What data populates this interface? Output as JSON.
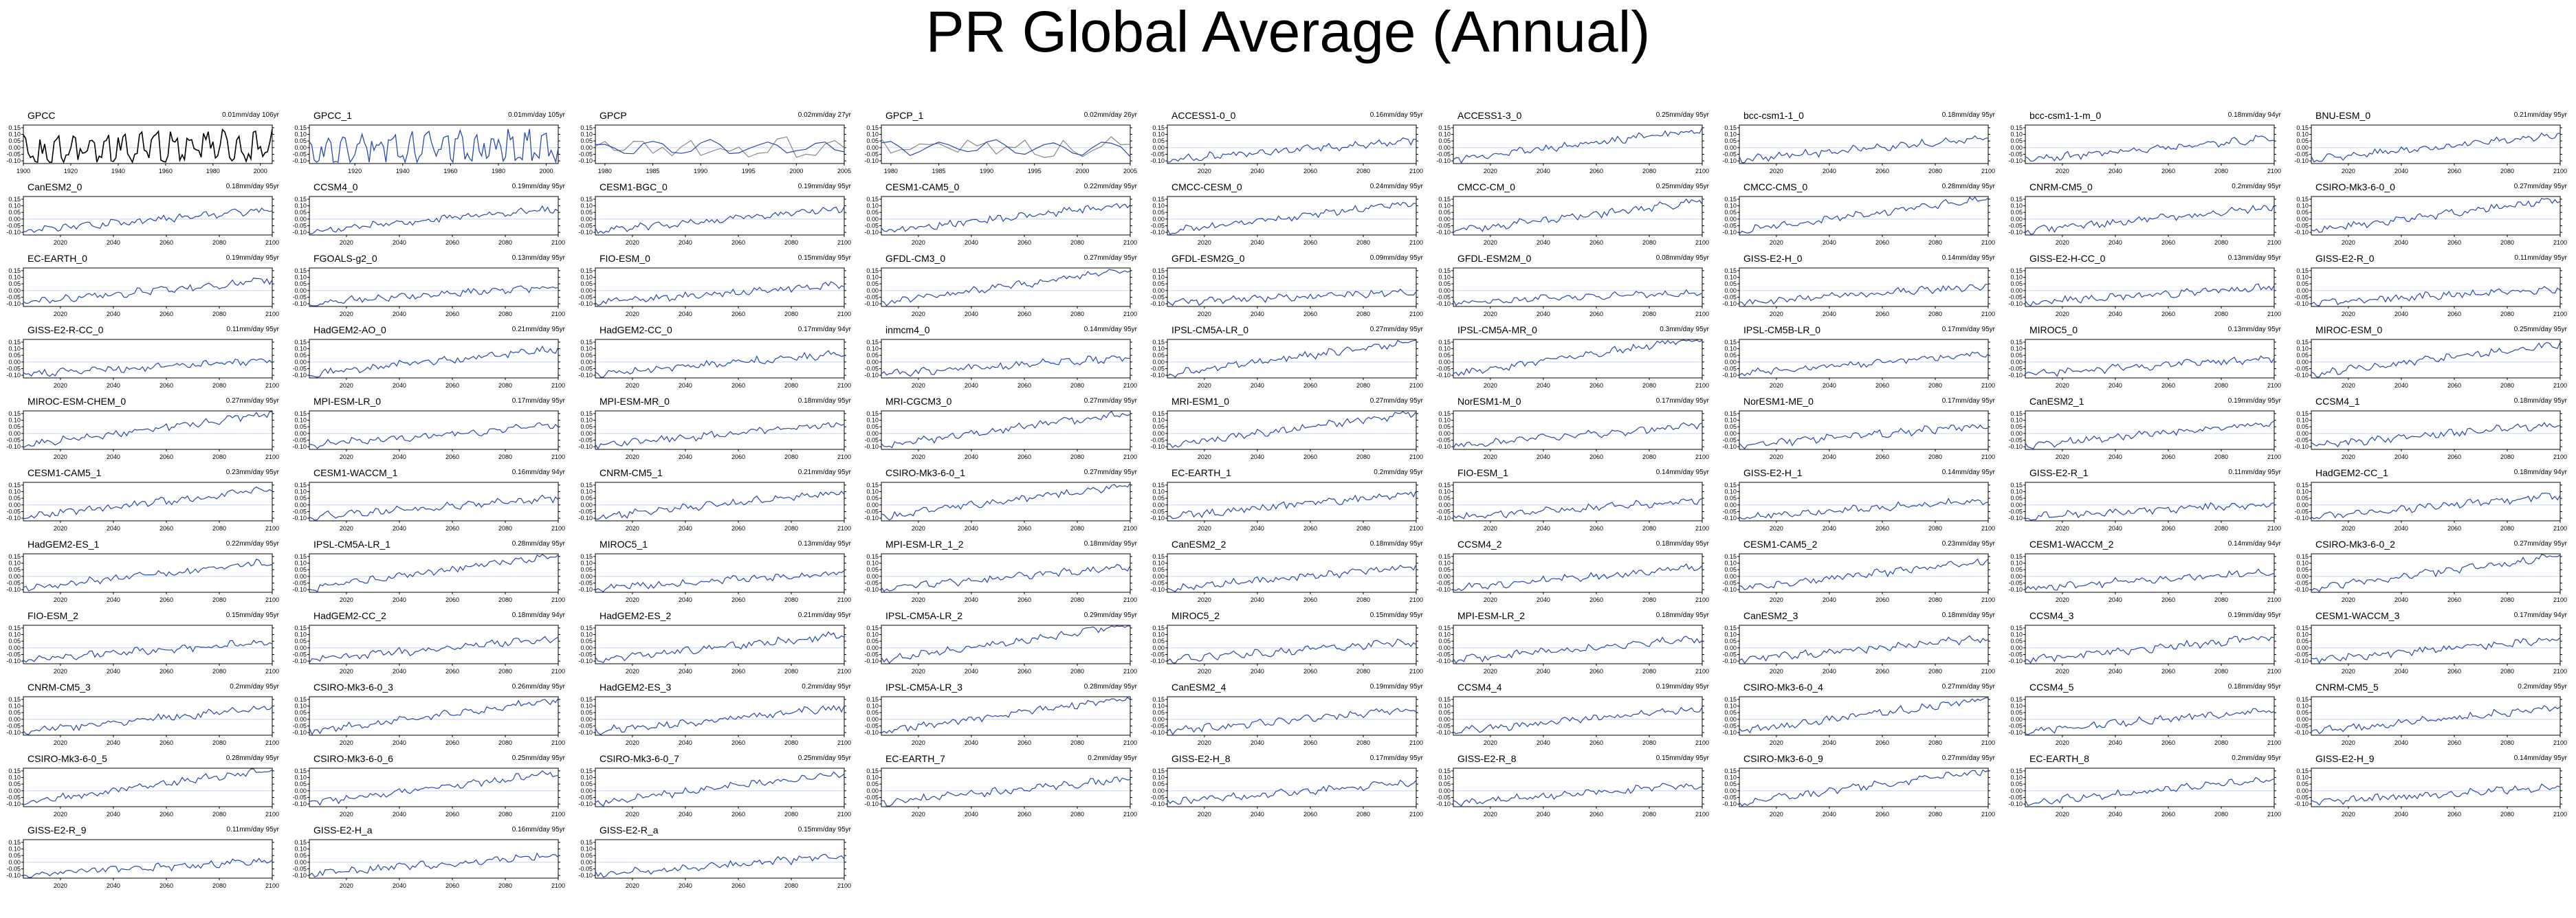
{
  "title": "PR Global Average (Annual)",
  "colors": {
    "observed_line": "#000000",
    "model_line": "#2949b0",
    "reference_line": "#888888",
    "axis": "#000000",
    "zero_line": "#c8d2ea"
  },
  "chart_data": {
    "type": "line",
    "title": "PR Global Average (Annual)",
    "yticks": [
      "0.15",
      "0.10",
      "0.05",
      "0.00",
      "-0.05",
      "-0.10"
    ],
    "ylim": [
      -0.12,
      0.17
    ],
    "grid": false,
    "panels": [
      {
        "name": "GPCC",
        "trend": "0.01mm/day 106yr",
        "xticks": [
          "1900",
          "1920",
          "1940",
          "1960",
          "1980",
          "2000"
        ],
        "xlim": [
          1900,
          2005
        ],
        "kind": "obs"
      },
      {
        "name": "GPCC_1",
        "trend": "0.01mm/day 105yr",
        "xticks": [
          "1920",
          "1940",
          "1960",
          "1980",
          "2000"
        ],
        "xlim": [
          1901,
          2005
        ],
        "kind": "obs1"
      },
      {
        "name": "GPCP",
        "trend": "0.02mm/day 27yr",
        "xticks": [
          "1980",
          "1985",
          "1990",
          "1995",
          "2000",
          "2005"
        ],
        "xlim": [
          1979,
          2005
        ],
        "kind": "gpcp"
      },
      {
        "name": "GPCP_1",
        "trend": "0.02mm/day 26yr",
        "xticks": [
          "1980",
          "1985",
          "1990",
          "1995",
          "2000",
          "2005"
        ],
        "xlim": [
          1979,
          2005
        ],
        "kind": "gpcp"
      },
      {
        "name": "ACCESS1-0_0",
        "trend": "0.16mm/day 95yr",
        "slope": 0.16
      },
      {
        "name": "ACCESS1-3_0",
        "trend": "0.25mm/day 95yr",
        "slope": 0.25
      },
      {
        "name": "bcc-csm1-1_0",
        "trend": "0.18mm/day 95yr",
        "slope": 0.18
      },
      {
        "name": "bcc-csm1-1-m_0",
        "trend": "0.18mm/day 94yr",
        "slope": 0.18
      },
      {
        "name": "BNU-ESM_0",
        "trend": "0.21mm/day 95yr",
        "slope": 0.21
      },
      {
        "name": "CanESM2_0",
        "trend": "0.18mm/day 95yr",
        "slope": 0.18
      },
      {
        "name": "CCSM4_0",
        "trend": "0.19mm/day 95yr",
        "slope": 0.19
      },
      {
        "name": "CESM1-BGC_0",
        "trend": "0.19mm/day 95yr",
        "slope": 0.19
      },
      {
        "name": "CESM1-CAM5_0",
        "trend": "0.22mm/day 95yr",
        "slope": 0.22
      },
      {
        "name": "CMCC-CESM_0",
        "trend": "0.24mm/day 95yr",
        "slope": 0.24
      },
      {
        "name": "CMCC-CM_0",
        "trend": "0.25mm/day 95yr",
        "slope": 0.25
      },
      {
        "name": "CMCC-CMS_0",
        "trend": "0.28mm/day 95yr",
        "slope": 0.28
      },
      {
        "name": "CNRM-CM5_0",
        "trend": "0.2mm/day 95yr",
        "slope": 0.2
      },
      {
        "name": "CSIRO-Mk3-6-0_0",
        "trend": "0.27mm/day 95yr",
        "slope": 0.27
      },
      {
        "name": "EC-EARTH_0",
        "trend": "0.19mm/day 95yr",
        "slope": 0.19
      },
      {
        "name": "FGOALS-g2_0",
        "trend": "0.13mm/day 95yr",
        "slope": 0.13
      },
      {
        "name": "FIO-ESM_0",
        "trend": "0.15mm/day 95yr",
        "slope": 0.15
      },
      {
        "name": "GFDL-CM3_0",
        "trend": "0.27mm/day 95yr",
        "slope": 0.27
      },
      {
        "name": "GFDL-ESM2G_0",
        "trend": "0.09mm/day 95yr",
        "slope": 0.09
      },
      {
        "name": "GFDL-ESM2M_0",
        "trend": "0.08mm/day 95yr",
        "slope": 0.08
      },
      {
        "name": "GISS-E2-H_0",
        "trend": "0.14mm/day 95yr",
        "slope": 0.14
      },
      {
        "name": "GISS-E2-H-CC_0",
        "trend": "0.13mm/day 95yr",
        "slope": 0.13
      },
      {
        "name": "GISS-E2-R_0",
        "trend": "0.11mm/day 95yr",
        "slope": 0.11
      },
      {
        "name": "GISS-E2-R-CC_0",
        "trend": "0.11mm/day 95yr",
        "slope": 0.11
      },
      {
        "name": "HadGEM2-AO_0",
        "trend": "0.21mm/day 95yr",
        "slope": 0.21
      },
      {
        "name": "HadGEM2-CC_0",
        "trend": "0.17mm/day 94yr",
        "slope": 0.17
      },
      {
        "name": "inmcm4_0",
        "trend": "0.14mm/day 95yr",
        "slope": 0.14
      },
      {
        "name": "IPSL-CM5A-LR_0",
        "trend": "0.27mm/day 95yr",
        "slope": 0.27
      },
      {
        "name": "IPSL-CM5A-MR_0",
        "trend": "0.3mm/day 95yr",
        "slope": 0.3
      },
      {
        "name": "IPSL-CM5B-LR_0",
        "trend": "0.17mm/day 95yr",
        "slope": 0.17
      },
      {
        "name": "MIROC5_0",
        "trend": "0.13mm/day 95yr",
        "slope": 0.13
      },
      {
        "name": "MIROC-ESM_0",
        "trend": "0.25mm/day 95yr",
        "slope": 0.25
      },
      {
        "name": "MIROC-ESM-CHEM_0",
        "trend": "0.27mm/day 95yr",
        "slope": 0.27
      },
      {
        "name": "MPI-ESM-LR_0",
        "trend": "0.17mm/day 95yr",
        "slope": 0.17
      },
      {
        "name": "MPI-ESM-MR_0",
        "trend": "0.18mm/day 95yr",
        "slope": 0.18
      },
      {
        "name": "MRI-CGCM3_0",
        "trend": "0.27mm/day 95yr",
        "slope": 0.27
      },
      {
        "name": "MRI-ESM1_0",
        "trend": "0.27mm/day 95yr",
        "slope": 0.27
      },
      {
        "name": "NorESM1-M_0",
        "trend": "0.17mm/day 95yr",
        "slope": 0.17
      },
      {
        "name": "NorESM1-ME_0",
        "trend": "0.17mm/day 95yr",
        "slope": 0.17
      },
      {
        "name": "CanESM2_1",
        "trend": "0.19mm/day 95yr",
        "slope": 0.19
      },
      {
        "name": "CCSM4_1",
        "trend": "0.18mm/day 95yr",
        "slope": 0.18
      },
      {
        "name": "CESM1-CAM5_1",
        "trend": "0.23mm/day 95yr",
        "slope": 0.23
      },
      {
        "name": "CESM1-WACCM_1",
        "trend": "0.16mm/day 94yr",
        "slope": 0.16
      },
      {
        "name": "CNRM-CM5_1",
        "trend": "0.21mm/day 95yr",
        "slope": 0.21
      },
      {
        "name": "CSIRO-Mk3-6-0_1",
        "trend": "0.27mm/day 95yr",
        "slope": 0.27
      },
      {
        "name": "EC-EARTH_1",
        "trend": "0.2mm/day 95yr",
        "slope": 0.2
      },
      {
        "name": "FIO-ESM_1",
        "trend": "0.14mm/day 95yr",
        "slope": 0.14
      },
      {
        "name": "GISS-E2-H_1",
        "trend": "0.14mm/day 95yr",
        "slope": 0.14
      },
      {
        "name": "GISS-E2-R_1",
        "trend": "0.11mm/day 95yr",
        "slope": 0.11
      },
      {
        "name": "HadGEM2-CC_1",
        "trend": "0.18mm/day 94yr",
        "slope": 0.18
      },
      {
        "name": "HadGEM2-ES_1",
        "trend": "0.22mm/day 95yr",
        "slope": 0.22
      },
      {
        "name": "IPSL-CM5A-LR_1",
        "trend": "0.28mm/day 95yr",
        "slope": 0.28
      },
      {
        "name": "MIROC5_1",
        "trend": "0.13mm/day 95yr",
        "slope": 0.13
      },
      {
        "name": "MPI-ESM-LR_1_2",
        "trend": "0.18mm/day 95yr",
        "slope": 0.18
      },
      {
        "name": "CanESM2_2",
        "trend": "0.18mm/day 95yr",
        "slope": 0.18
      },
      {
        "name": "CCSM4_2",
        "trend": "0.18mm/day 95yr",
        "slope": 0.18
      },
      {
        "name": "CESM1-CAM5_2",
        "trend": "0.23mm/day 95yr",
        "slope": 0.23
      },
      {
        "name": "CESM1-WACCM_2",
        "trend": "0.14mm/day 94yr",
        "slope": 0.14
      },
      {
        "name": "CSIRO-Mk3-6-0_2",
        "trend": "0.27mm/day 95yr",
        "slope": 0.27
      },
      {
        "name": "FIO-ESM_2",
        "trend": "0.15mm/day 95yr",
        "slope": 0.15
      },
      {
        "name": "HadGEM2-CC_2",
        "trend": "0.18mm/day 94yr",
        "slope": 0.18
      },
      {
        "name": "HadGEM2-ES_2",
        "trend": "0.21mm/day 95yr",
        "slope": 0.21
      },
      {
        "name": "IPSL-CM5A-LR_2",
        "trend": "0.29mm/day 95yr",
        "slope": 0.29
      },
      {
        "name": "MIROC5_2",
        "trend": "0.15mm/day 95yr",
        "slope": 0.15
      },
      {
        "name": "MPI-ESM-LR_2",
        "trend": "0.18mm/day 95yr",
        "slope": 0.18
      },
      {
        "name": "CanESM2_3",
        "trend": "0.18mm/day 95yr",
        "slope": 0.18
      },
      {
        "name": "CCSM4_3",
        "trend": "0.19mm/day 95yr",
        "slope": 0.19
      },
      {
        "name": "CESM1-WACCM_3",
        "trend": "0.17mm/day 94yr",
        "slope": 0.17
      },
      {
        "name": "CNRM-CM5_3",
        "trend": "0.2mm/day 95yr",
        "slope": 0.2
      },
      {
        "name": "CSIRO-Mk3-6-0_3",
        "trend": "0.26mm/day 95yr",
        "slope": 0.26
      },
      {
        "name": "HadGEM2-ES_3",
        "trend": "0.2mm/day 95yr",
        "slope": 0.2
      },
      {
        "name": "IPSL-CM5A-LR_3",
        "trend": "0.28mm/day 95yr",
        "slope": 0.28
      },
      {
        "name": "CanESM2_4",
        "trend": "0.19mm/day 95yr",
        "slope": 0.19
      },
      {
        "name": "CCSM4_4",
        "trend": "0.19mm/day 95yr",
        "slope": 0.19
      },
      {
        "name": "CSIRO-Mk3-6-0_4",
        "trend": "0.27mm/day 95yr",
        "slope": 0.27
      },
      {
        "name": "CCSM4_5",
        "trend": "0.18mm/day 95yr",
        "slope": 0.18
      },
      {
        "name": "CNRM-CM5_5",
        "trend": "0.2mm/day 95yr",
        "slope": 0.2
      },
      {
        "name": "CSIRO-Mk3-6-0_5",
        "trend": "0.28mm/day 95yr",
        "slope": 0.28
      },
      {
        "name": "CSIRO-Mk3-6-0_6",
        "trend": "0.25mm/day 95yr",
        "slope": 0.25
      },
      {
        "name": "CSIRO-Mk3-6-0_7",
        "trend": "0.25mm/day 95yr",
        "slope": 0.25
      },
      {
        "name": "EC-EARTH_7",
        "trend": "0.2mm/day 95yr",
        "slope": 0.2
      },
      {
        "name": "GISS-E2-H_8",
        "trend": "0.17mm/day 95yr",
        "slope": 0.17
      },
      {
        "name": "GISS-E2-R_8",
        "trend": "0.15mm/day 95yr",
        "slope": 0.15
      },
      {
        "name": "CSIRO-Mk3-6-0_9",
        "trend": "0.27mm/day 95yr",
        "slope": 0.27
      },
      {
        "name": "EC-EARTH_8",
        "trend": "0.2mm/day 95yr",
        "slope": 0.2
      },
      {
        "name": "GISS-E2-H_9",
        "trend": "0.14mm/day 95yr",
        "slope": 0.14
      },
      {
        "name": "GISS-E2-R_9",
        "trend": "0.11mm/day 95yr",
        "slope": 0.11
      },
      {
        "name": "GISS-E2-H_a",
        "trend": "0.16mm/day 95yr",
        "slope": 0.16
      },
      {
        "name": "GISS-E2-R_a",
        "trend": "0.15mm/day 95yr",
        "slope": 0.15
      }
    ],
    "model_xticks": [
      "2020",
      "2040",
      "2060",
      "2080",
      "2100"
    ],
    "model_xlim": [
      2006,
      2100
    ]
  }
}
